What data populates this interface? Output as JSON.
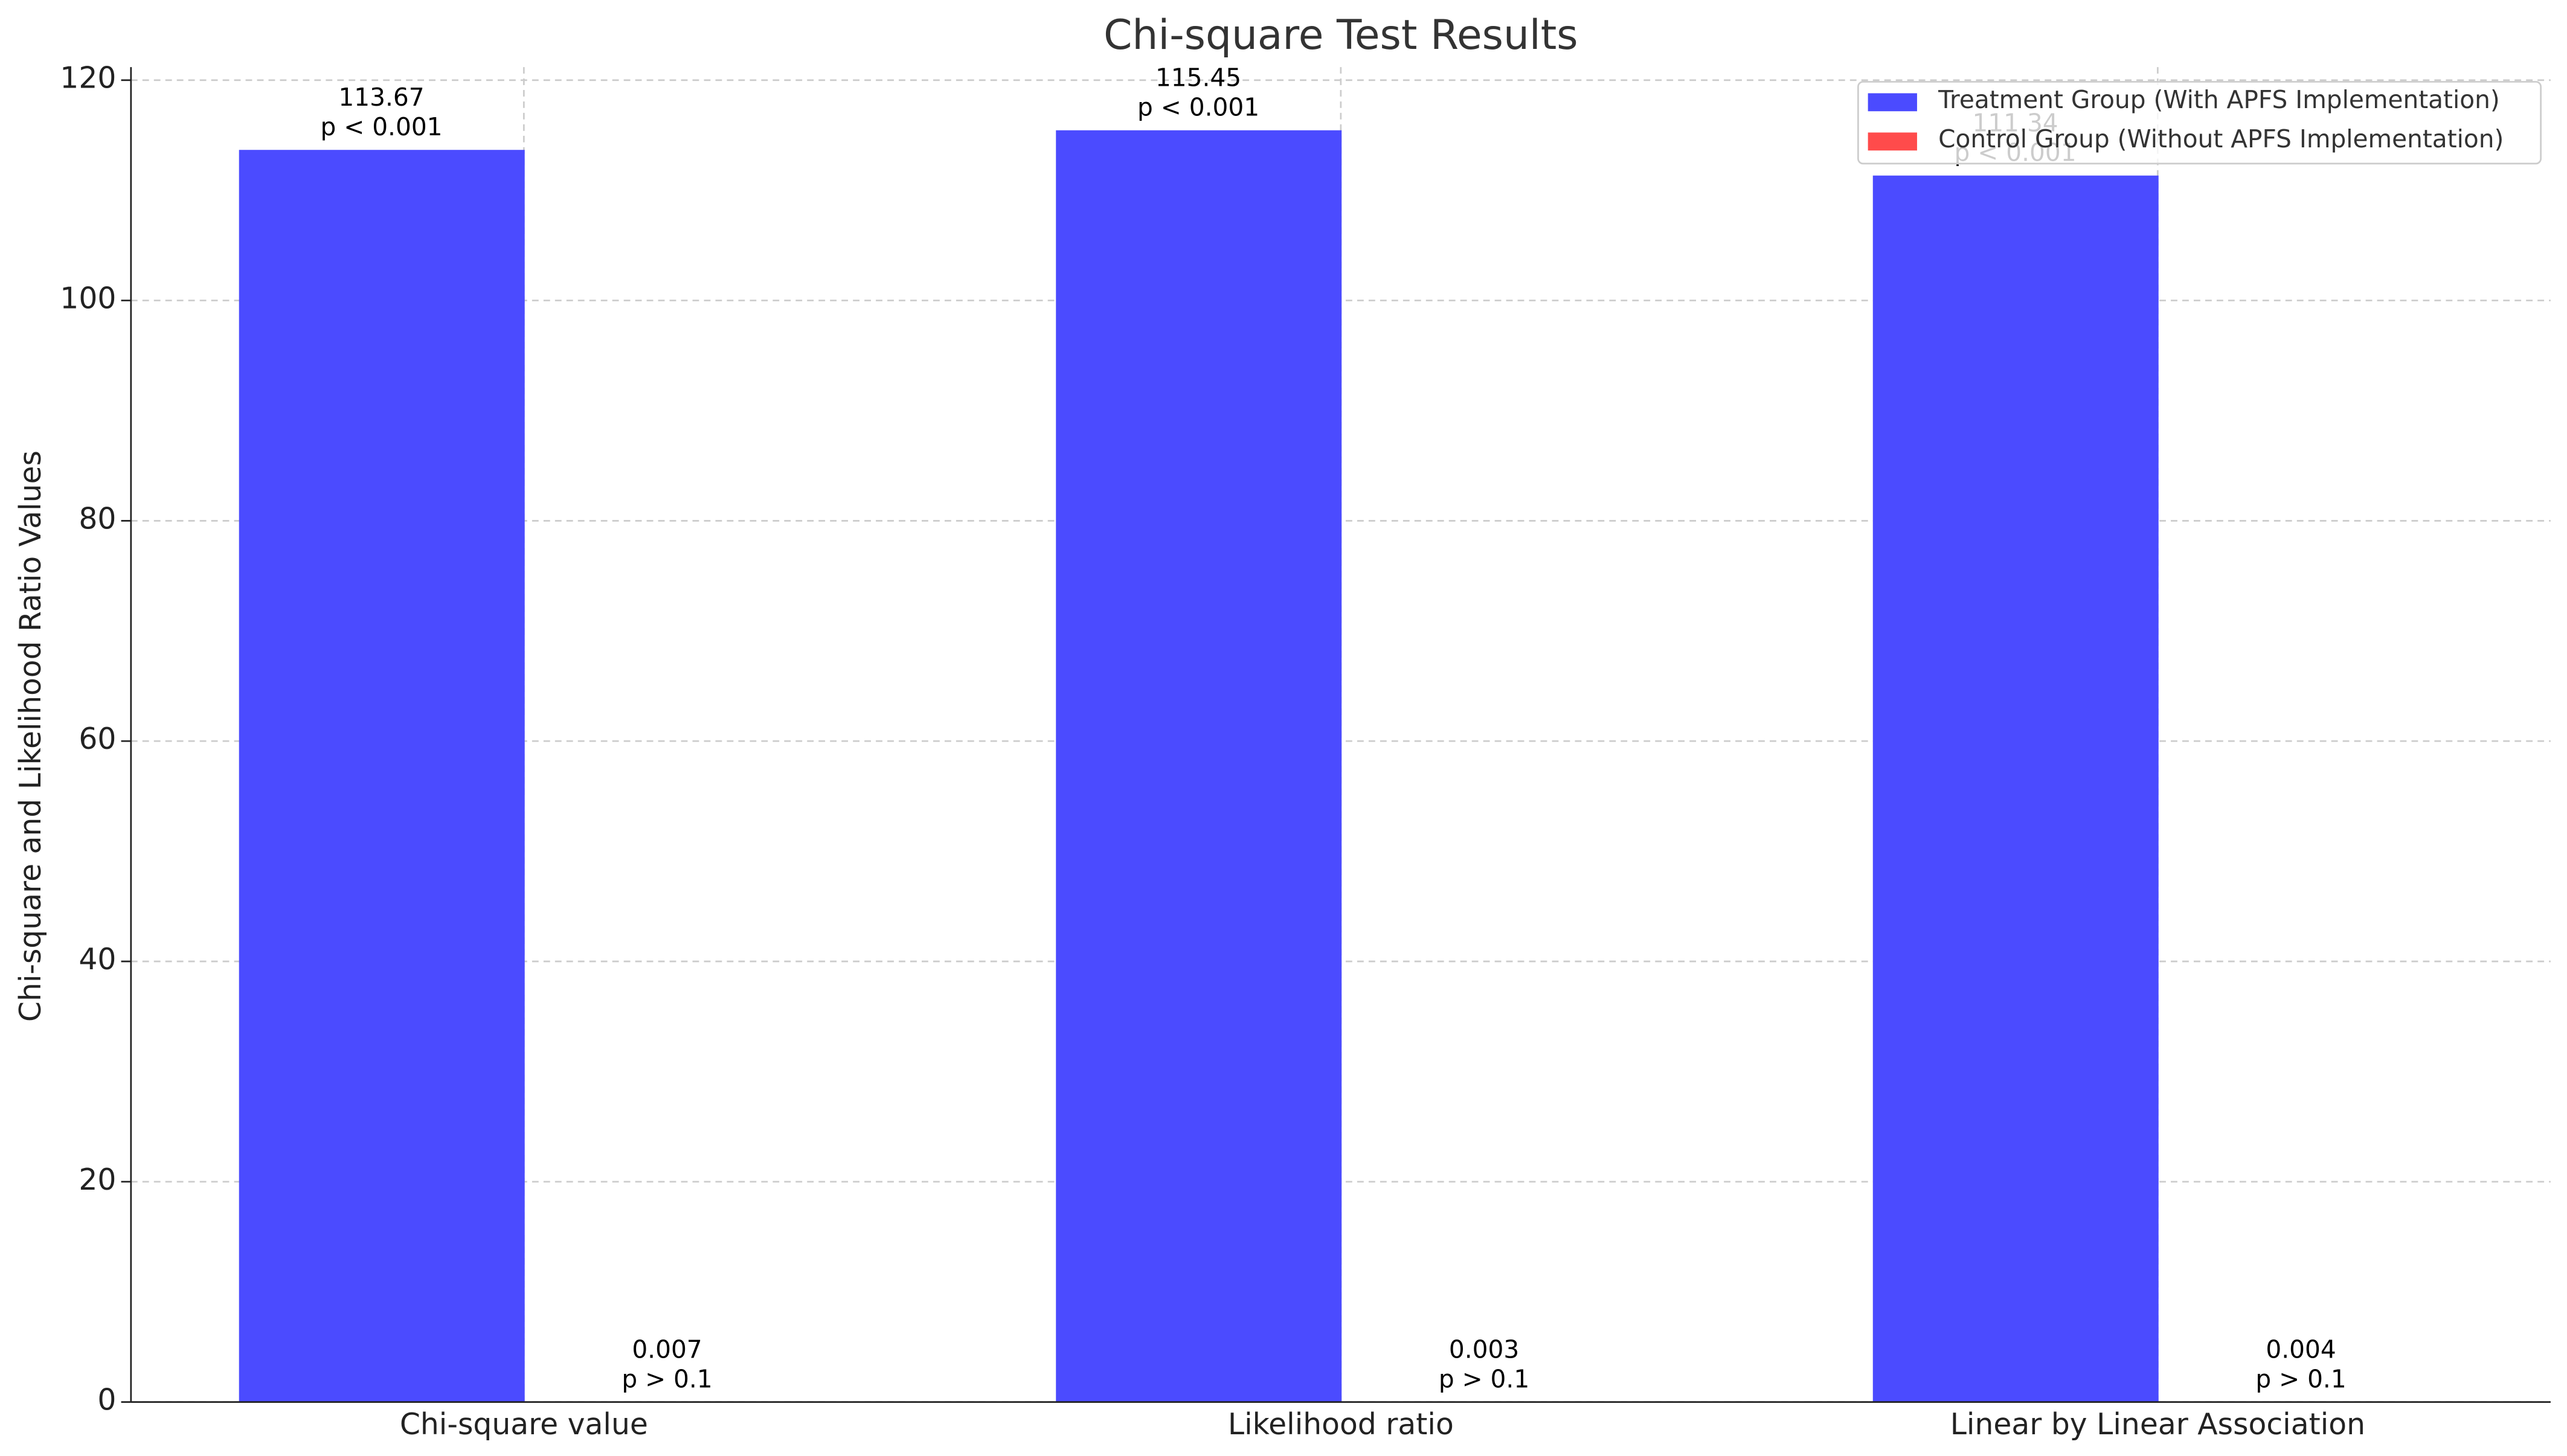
{
  "chart_data": {
    "type": "bar",
    "title": "Chi-square Test Results",
    "y_label": "Chi-square and Likelihood Ratio Values",
    "categories": [
      "Chi-square value",
      "Likelihood ratio",
      "Linear by Linear Association"
    ],
    "series": [
      {
        "name": "Treatment Group (With APFS Implementation)",
        "color": "#4b4bff",
        "values": [
          113.67,
          115.45,
          111.34
        ],
        "p_labels": [
          "p < 0.001",
          "p < 0.001",
          "p < 0.001"
        ]
      },
      {
        "name": "Control Group (Without APFS Implementation)",
        "color": "#ff4b4b",
        "values": [
          0.007,
          0.003,
          0.004
        ],
        "p_labels": [
          "p > 0.1",
          "p > 0.1",
          "p > 0.1"
        ]
      }
    ],
    "ylim": [
      0,
      120
    ],
    "yticks": [
      0,
      20,
      40,
      60,
      80,
      100,
      120
    ],
    "grid": true,
    "legend": "upper right"
  }
}
